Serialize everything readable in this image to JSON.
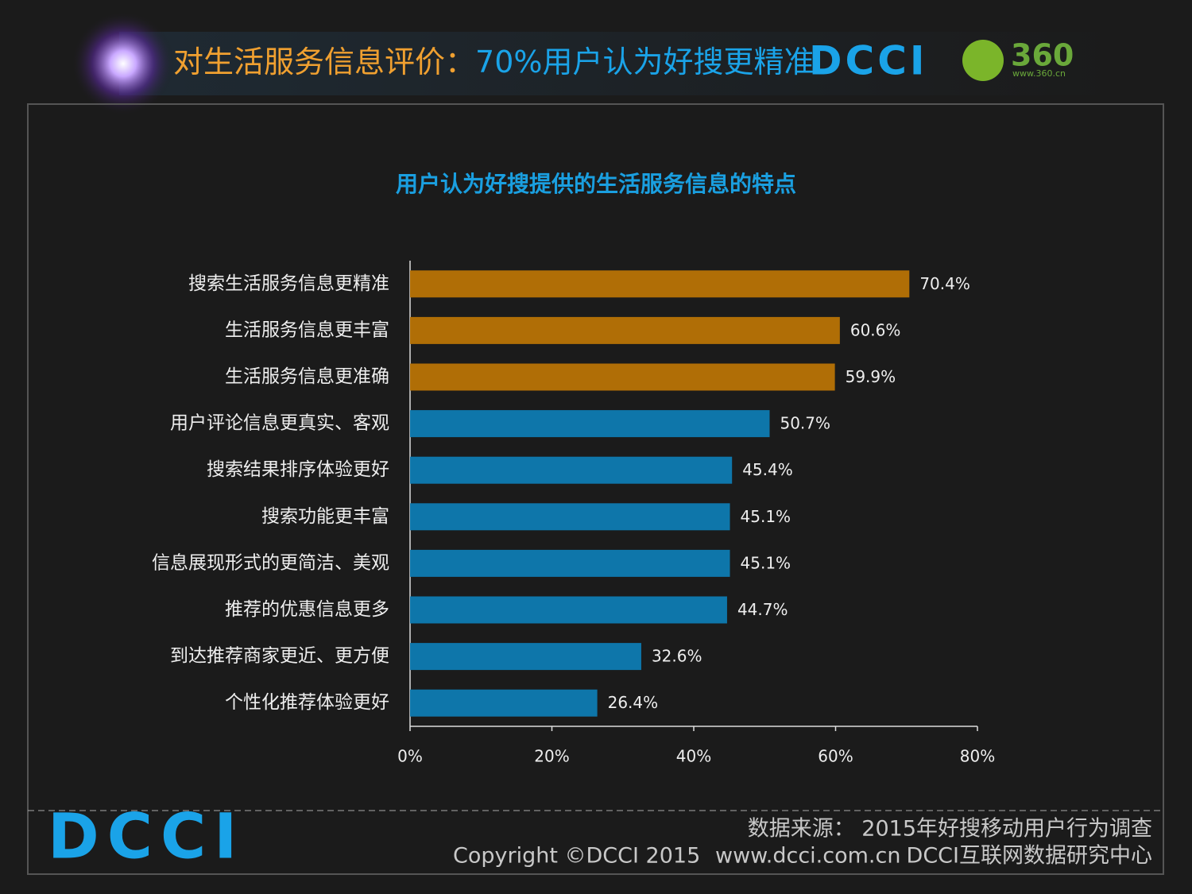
{
  "header": {
    "title_lead": "对生活服务信息评价：",
    "title_main": "70%用户认为好搜更精准",
    "logo_dcci": "DCCI",
    "logo_360": "360",
    "logo_360_url": "www.360.cn"
  },
  "chart_data": {
    "type": "bar",
    "orientation": "horizontal",
    "title": "用户认为好搜提供的生活服务信息的特点",
    "categories": [
      "搜索生活服务信息更精准",
      "生活服务信息更丰富",
      "生活服务信息更准确",
      "用户评论信息更真实、客观",
      "搜索结果排序体验更好",
      "搜索功能更丰富",
      "信息展现形式的更简洁、美观",
      "推荐的优惠信息更多",
      "到达推荐商家更近、更方便",
      "个性化推荐体验更好"
    ],
    "values": [
      70.4,
      60.6,
      59.9,
      50.7,
      45.4,
      45.1,
      45.1,
      44.7,
      32.6,
      26.4
    ],
    "value_labels": [
      "70.4%",
      "60.6%",
      "59.9%",
      "50.7%",
      "45.4%",
      "45.1%",
      "45.1%",
      "44.7%",
      "32.6%",
      "26.4%"
    ],
    "colors": [
      "#b06e06",
      "#b06e06",
      "#b06e06",
      "#0e76aa",
      "#0e76aa",
      "#0e76aa",
      "#0e76aa",
      "#0e76aa",
      "#0e76aa",
      "#0e76aa"
    ],
    "xlim": [
      0,
      80
    ],
    "xticks": [
      {
        "value": 0,
        "label": "0%"
      },
      {
        "value": 20,
        "label": "20%"
      },
      {
        "value": 40,
        "label": "40%"
      },
      {
        "value": 60,
        "label": "60%"
      },
      {
        "value": 80,
        "label": "80%"
      }
    ],
    "grid": false
  },
  "footer": {
    "logo": "DCCI",
    "source": "数据来源： 2015年好搜移动用户行为调查",
    "copyright": "Copyright ©DCCI 2015",
    "website": "www.dcci.com.cn",
    "org": "DCCI互联网数据研究中心"
  }
}
